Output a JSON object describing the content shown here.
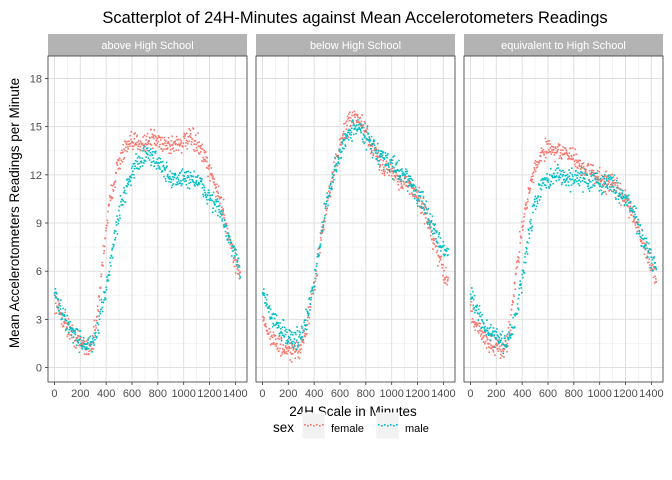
{
  "chart_data": {
    "type": "scatter",
    "title": "Scatterplot of 24H-Minutes against Mean Accelerotometers Readings",
    "xlabel": "24H Scale in Minutes",
    "ylabel": "Mean Accelerotometers Readings per Minute",
    "xlim": [
      -50,
      1490
    ],
    "ylim": [
      -0.9,
      19.4
    ],
    "x_ticks": [
      0,
      200,
      400,
      600,
      800,
      1000,
      1200,
      1400
    ],
    "x_tick_labels": [
      "0",
      "200",
      "400",
      "600",
      "800",
      "1000",
      "1200",
      "1400"
    ],
    "y_ticks": [
      0,
      3,
      6,
      9,
      12,
      15,
      18
    ],
    "y_tick_labels": [
      "0",
      "3",
      "6",
      "9",
      "12",
      "15",
      "18"
    ],
    "grid": true,
    "legend": {
      "title": "sex",
      "position": "bottom",
      "entries": [
        {
          "label": "female",
          "color": "#F8766D"
        },
        {
          "label": "male",
          "color": "#00BFC4"
        }
      ]
    },
    "panels": [
      {
        "label": "above High School",
        "series": [
          {
            "name": "female",
            "color": "#F8766D",
            "anchors": [
              [
                1,
                4.3
              ],
              [
                60,
                3.1
              ],
              [
                120,
                2.3
              ],
              [
                180,
                1.7
              ],
              [
                240,
                1.3
              ],
              [
                290,
                1.4
              ],
              [
                330,
                3
              ],
              [
                360,
                5.5
              ],
              [
                400,
                8.8
              ],
              [
                440,
                10.8
              ],
              [
                480,
                12.3
              ],
              [
                520,
                13.2
              ],
              [
                560,
                13.7
              ],
              [
                600,
                13.9
              ],
              [
                650,
                14.1
              ],
              [
                700,
                14
              ],
              [
                750,
                14.3
              ],
              [
                800,
                14.1
              ],
              [
                850,
                14
              ],
              [
                900,
                13.8
              ],
              [
                950,
                14
              ],
              [
                1000,
                14
              ],
              [
                1050,
                14.2
              ],
              [
                1100,
                14
              ],
              [
                1150,
                13.2
              ],
              [
                1200,
                12.2
              ],
              [
                1250,
                11.3
              ],
              [
                1300,
                10
              ],
              [
                1350,
                8.2
              ],
              [
                1400,
                6.6
              ],
              [
                1440,
                5.8
              ]
            ],
            "noise": 0.55
          },
          {
            "name": "male",
            "color": "#00BFC4",
            "anchors": [
              [
                1,
                4.6
              ],
              [
                60,
                3.3
              ],
              [
                120,
                2.5
              ],
              [
                180,
                1.8
              ],
              [
                240,
                1.4
              ],
              [
                290,
                1.4
              ],
              [
                330,
                2.2
              ],
              [
                360,
                3.3
              ],
              [
                400,
                5
              ],
              [
                440,
                6.8
              ],
              [
                480,
                8.8
              ],
              [
                520,
                10.3
              ],
              [
                560,
                11.3
              ],
              [
                600,
                12.2
              ],
              [
                650,
                12.8
              ],
              [
                700,
                13.2
              ],
              [
                750,
                13.1
              ],
              [
                800,
                12.9
              ],
              [
                850,
                12.2
              ],
              [
                900,
                11.8
              ],
              [
                950,
                11.7
              ],
              [
                1000,
                11.8
              ],
              [
                1050,
                11.8
              ],
              [
                1100,
                11.7
              ],
              [
                1150,
                11.1
              ],
              [
                1200,
                10.6
              ],
              [
                1250,
                10.2
              ],
              [
                1300,
                9.3
              ],
              [
                1350,
                8
              ],
              [
                1400,
                6.8
              ],
              [
                1440,
                6.2
              ]
            ],
            "noise": 0.55
          }
        ]
      },
      {
        "label": "below High School",
        "series": [
          {
            "name": "female",
            "color": "#F8766D",
            "anchors": [
              [
                1,
                3.2
              ],
              [
                60,
                2
              ],
              [
                120,
                1.4
              ],
              [
                180,
                1
              ],
              [
                240,
                0.9
              ],
              [
                290,
                1.2
              ],
              [
                330,
                2.2
              ],
              [
                360,
                3.2
              ],
              [
                400,
                5.2
              ],
              [
                440,
                7.3
              ],
              [
                480,
                9.2
              ],
              [
                520,
                11
              ],
              [
                560,
                12.5
              ],
              [
                600,
                13.8
              ],
              [
                650,
                15
              ],
              [
                700,
                15.6
              ],
              [
                750,
                15.3
              ],
              [
                800,
                14.6
              ],
              [
                850,
                13.6
              ],
              [
                900,
                13
              ],
              [
                950,
                12.5
              ],
              [
                1000,
                12.3
              ],
              [
                1050,
                11.8
              ],
              [
                1100,
                11.5
              ],
              [
                1150,
                11.2
              ],
              [
                1200,
                10.8
              ],
              [
                1250,
                9.8
              ],
              [
                1300,
                8.6
              ],
              [
                1350,
                7.2
              ],
              [
                1400,
                6
              ],
              [
                1440,
                5.3
              ]
            ],
            "noise": 0.55
          },
          {
            "name": "male",
            "color": "#00BFC4",
            "anchors": [
              [
                1,
                4.8
              ],
              [
                60,
                3.3
              ],
              [
                120,
                2.6
              ],
              [
                180,
                2.1
              ],
              [
                240,
                1.7
              ],
              [
                290,
                1.9
              ],
              [
                330,
                2.6
              ],
              [
                360,
                3.6
              ],
              [
                400,
                5.4
              ],
              [
                440,
                7.5
              ],
              [
                480,
                9.5
              ],
              [
                520,
                11
              ],
              [
                560,
                12.2
              ],
              [
                600,
                13.3
              ],
              [
                650,
                14.4
              ],
              [
                700,
                14.9
              ],
              [
                750,
                14.9
              ],
              [
                800,
                14.5
              ],
              [
                850,
                13.9
              ],
              [
                900,
                13.2
              ],
              [
                950,
                12.9
              ],
              [
                1000,
                12.6
              ],
              [
                1050,
                12.3
              ],
              [
                1100,
                12
              ],
              [
                1150,
                11.5
              ],
              [
                1200,
                10.7
              ],
              [
                1250,
                10
              ],
              [
                1300,
                9.1
              ],
              [
                1350,
                8.2
              ],
              [
                1400,
                7.5
              ],
              [
                1440,
                7
              ]
            ],
            "noise": 0.55
          }
        ]
      },
      {
        "label": "equivalent to High School",
        "series": [
          {
            "name": "female",
            "color": "#F8766D",
            "anchors": [
              [
                1,
                3.6
              ],
              [
                60,
                2.4
              ],
              [
                120,
                1.8
              ],
              [
                180,
                1.3
              ],
              [
                240,
                1.1
              ],
              [
                290,
                1.6
              ],
              [
                330,
                4.5
              ],
              [
                360,
                6.3
              ],
              [
                400,
                8.8
              ],
              [
                440,
                10.4
              ],
              [
                480,
                11.8
              ],
              [
                520,
                12.8
              ],
              [
                560,
                13.5
              ],
              [
                600,
                13.7
              ],
              [
                650,
                13.6
              ],
              [
                700,
                13.4
              ],
              [
                750,
                13.3
              ],
              [
                800,
                13
              ],
              [
                850,
                12.6
              ],
              [
                900,
                12.2
              ],
              [
                950,
                12
              ],
              [
                1000,
                11.9
              ],
              [
                1050,
                11.6
              ],
              [
                1100,
                11.3
              ],
              [
                1150,
                11
              ],
              [
                1200,
                10.5
              ],
              [
                1250,
                9.8
              ],
              [
                1300,
                8.7
              ],
              [
                1350,
                7.3
              ],
              [
                1400,
                6.2
              ],
              [
                1440,
                5.5
              ]
            ],
            "noise": 0.55
          },
          {
            "name": "male",
            "color": "#00BFC4",
            "anchors": [
              [
                1,
                4.8
              ],
              [
                60,
                3.3
              ],
              [
                120,
                2.5
              ],
              [
                180,
                2
              ],
              [
                240,
                1.6
              ],
              [
                290,
                1.6
              ],
              [
                330,
                2.6
              ],
              [
                360,
                3.4
              ],
              [
                400,
                5.5
              ],
              [
                440,
                7.6
              ],
              [
                480,
                9.5
              ],
              [
                520,
                10.7
              ],
              [
                560,
                11.4
              ],
              [
                600,
                11.7
              ],
              [
                650,
                11.9
              ],
              [
                700,
                11.9
              ],
              [
                750,
                11.8
              ],
              [
                800,
                11.8
              ],
              [
                850,
                11.9
              ],
              [
                900,
                11.6
              ],
              [
                950,
                11.7
              ],
              [
                1000,
                11.5
              ],
              [
                1050,
                11.5
              ],
              [
                1100,
                11.4
              ],
              [
                1150,
                11
              ],
              [
                1200,
                10.6
              ],
              [
                1250,
                10
              ],
              [
                1300,
                8.8
              ],
              [
                1350,
                7.6
              ],
              [
                1400,
                6.7
              ],
              [
                1440,
                6.2
              ]
            ],
            "noise": 0.55
          }
        ]
      }
    ]
  }
}
